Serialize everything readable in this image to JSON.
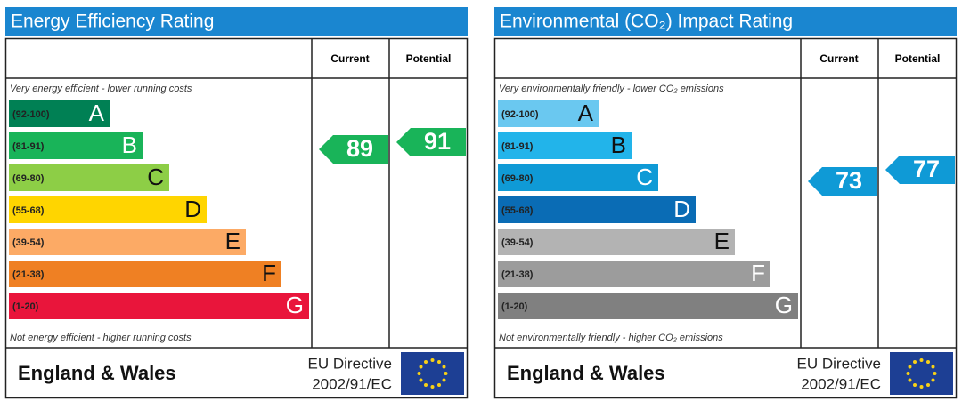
{
  "panels": [
    {
      "title": "Energy Efficiency Rating",
      "current_label": "Current",
      "potential_label": "Potential",
      "top_note": "Very energy efficient - lower running costs",
      "bottom_note": "Not energy efficient - higher running costs",
      "bands": [
        {
          "range": "(92-100)",
          "letter": "A",
          "color": "#008054"
        },
        {
          "range": "(81-91)",
          "letter": "B",
          "color": "#19b459"
        },
        {
          "range": "(69-80)",
          "letter": "C",
          "color": "#8dce46"
        },
        {
          "range": "(55-68)",
          "letter": "D",
          "color": "#ffd500"
        },
        {
          "range": "(39-54)",
          "letter": "E",
          "color": "#fcaa65"
        },
        {
          "range": "(21-38)",
          "letter": "F",
          "color": "#ef8023"
        },
        {
          "range": "(1-20)",
          "letter": "G",
          "color": "#e9153b"
        }
      ],
      "current": 89,
      "potential": 91,
      "region": "England & Wales",
      "directive": "EU Directive",
      "directive_code": "2002/91/EC"
    },
    {
      "title": "Environmental (CO₂) Impact Rating",
      "current_label": "Current",
      "potential_label": "Potential",
      "top_note": "Very environmentally friendly - lower CO₂ emissions",
      "bottom_note": "Not environmentally friendly - higher CO₂ emissions",
      "bands": [
        {
          "range": "(92-100)",
          "letter": "A",
          "color": "#6ac8f0"
        },
        {
          "range": "(81-91)",
          "letter": "B",
          "color": "#22b4ea"
        },
        {
          "range": "(69-80)",
          "letter": "C",
          "color": "#0f9ad6"
        },
        {
          "range": "(55-68)",
          "letter": "D",
          "color": "#0a6cb5"
        },
        {
          "range": "(39-54)",
          "letter": "E",
          "color": "#b3b3b3"
        },
        {
          "range": "(21-38)",
          "letter": "F",
          "color": "#9c9c9c"
        },
        {
          "range": "(1-20)",
          "letter": "G",
          "color": "#808080"
        }
      ],
      "current": 73,
      "potential": 77,
      "region": "England & Wales",
      "directive": "EU Directive",
      "directive_code": "2002/91/EC"
    }
  ]
}
